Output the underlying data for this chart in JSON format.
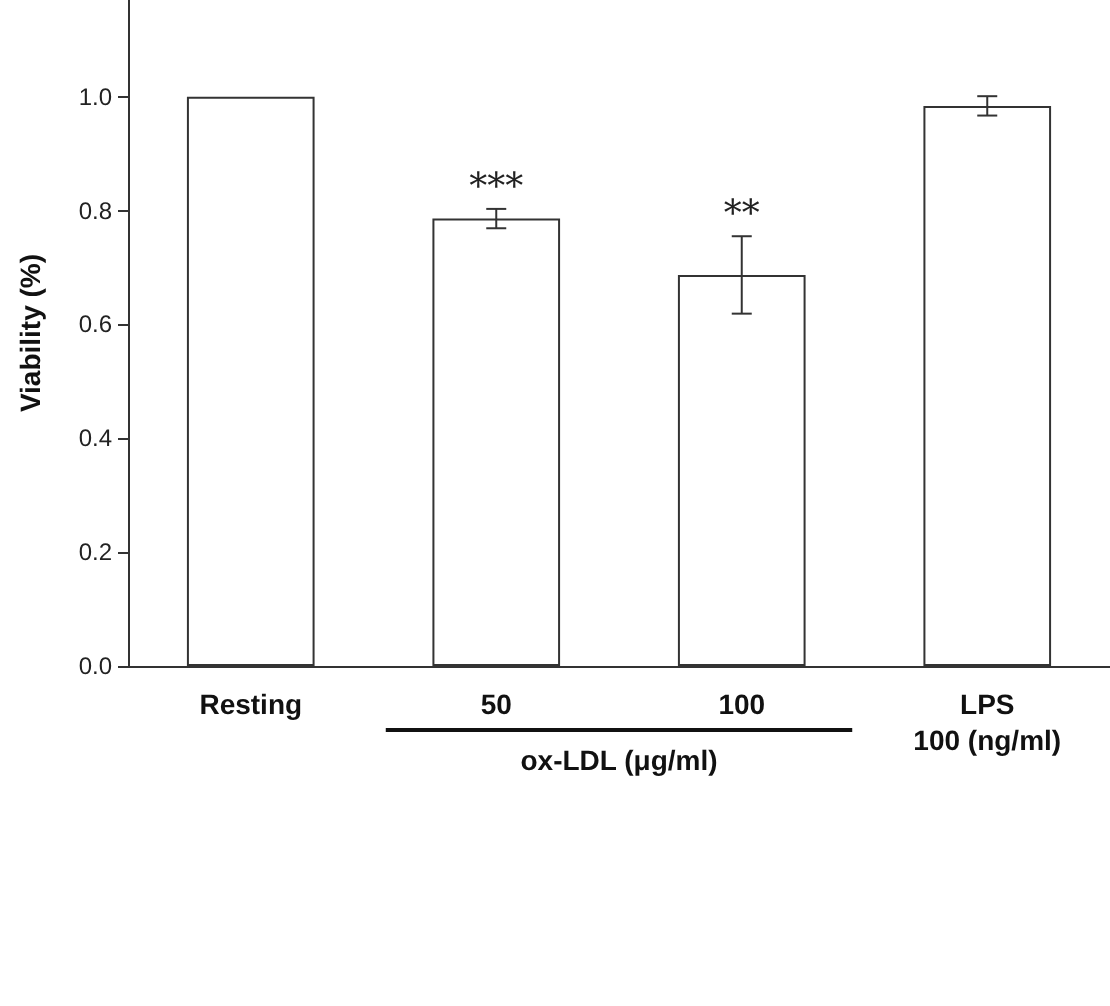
{
  "chart_data": {
    "type": "bar",
    "ylabel": "Viability (%)",
    "categories": [
      "Resting",
      "50",
      "100",
      "LPS\n100 (ng/ml)"
    ],
    "values": [
      1.0,
      0.786,
      0.687,
      0.984
    ],
    "errors": [
      null,
      0.017,
      0.068,
      0.017
    ],
    "color": "#ffffff",
    "ylim": [
      0,
      1.17
    ],
    "yticks": [
      {
        "value": 0,
        "label": "0.0"
      },
      {
        "value": 0.2,
        "label": "0.2"
      },
      {
        "value": 0.4,
        "label": "0.4"
      },
      {
        "value": 0.6,
        "label": "0.6"
      },
      {
        "value": 0.8,
        "label": "0.8"
      },
      {
        "value": 1.0,
        "label": "1.0"
      }
    ],
    "grid": false,
    "annotations": [
      {
        "text": "***",
        "x": "50",
        "y": 0.803
      },
      {
        "text": "**",
        "x": "100",
        "y": 0.756
      },
      "ox-LDL (μg/ml)"
    ]
  }
}
